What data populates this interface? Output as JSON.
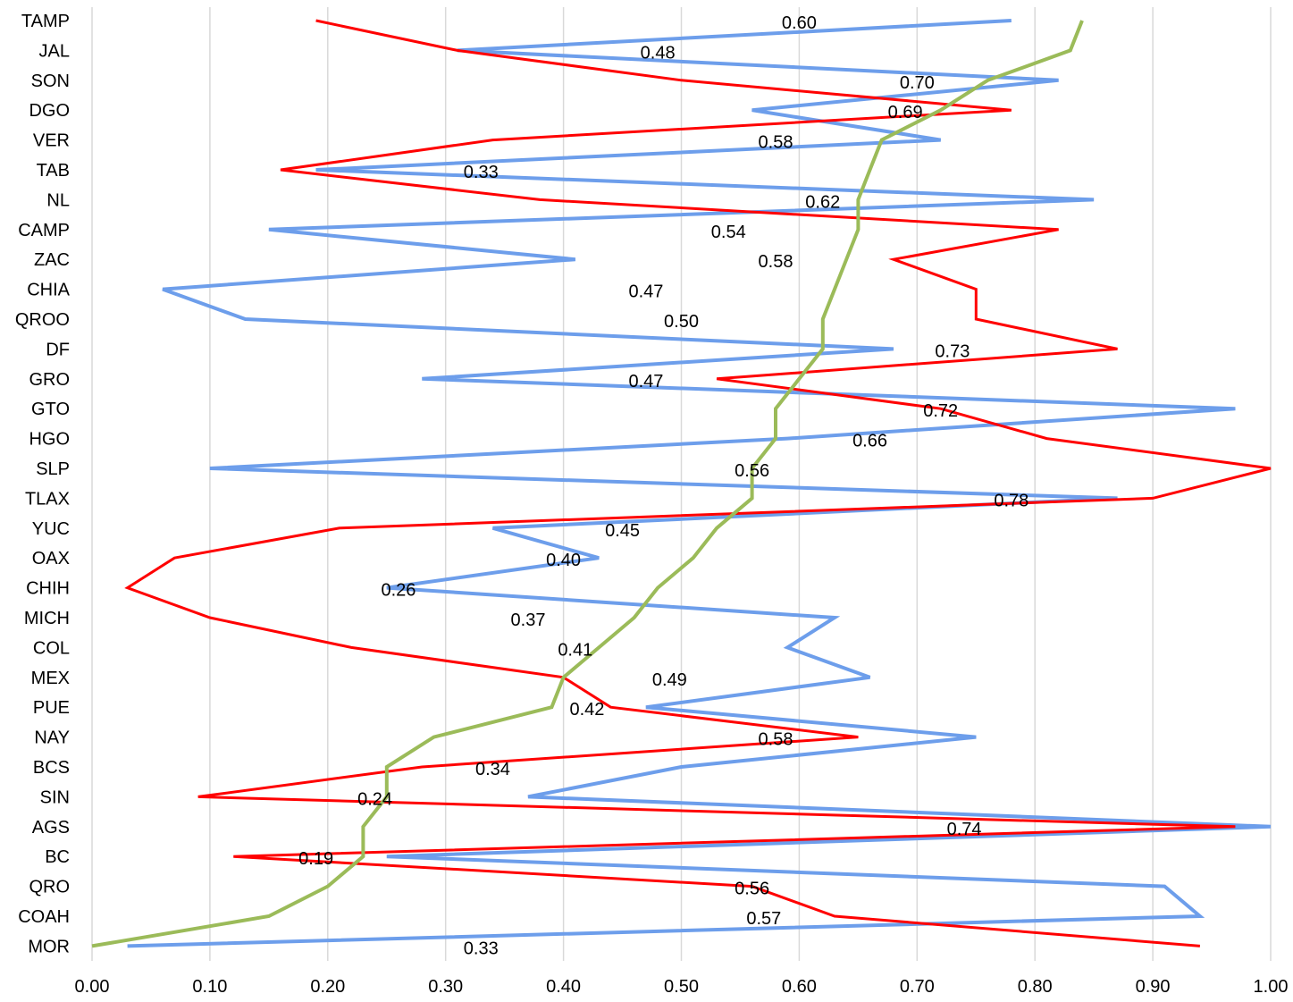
{
  "chart_data": {
    "type": "line",
    "orientation": "horizontal-categories-on-y",
    "categories": [
      "TAMP",
      "JAL",
      "SON",
      "DGO",
      "VER",
      "TAB",
      "NL",
      "CAMP",
      "ZAC",
      "CHIA",
      "QROO",
      "DF",
      "GRO",
      "GTO",
      "HGO",
      "SLP",
      "TLAX",
      "YUC",
      "OAX",
      "CHIH",
      "MICH",
      "COL",
      "MEX",
      "PUE",
      "NAY",
      "BCS",
      "SIN",
      "AGS",
      "BC",
      "QRO",
      "COAH",
      "MOR"
    ],
    "xlim": [
      0.0,
      1.0
    ],
    "x_ticks": [
      "0.00",
      "0.10",
      "0.20",
      "0.30",
      "0.40",
      "0.50",
      "0.60",
      "0.70",
      "0.80",
      "0.90",
      "1.00"
    ],
    "grid": true,
    "legend": "none",
    "series": [
      {
        "color": "#6d9eeb",
        "values": [
          0.78,
          0.31,
          0.82,
          0.56,
          0.72,
          0.19,
          0.85,
          0.15,
          0.41,
          0.06,
          0.13,
          0.68,
          0.28,
          0.97,
          0.59,
          0.1,
          0.87,
          0.34,
          0.43,
          0.25,
          0.63,
          0.59,
          0.66,
          0.47,
          0.75,
          0.5,
          0.37,
          1.0,
          0.25,
          0.91,
          0.94,
          0.03
        ]
      },
      {
        "color": "#ff0000",
        "values": [
          0.19,
          0.31,
          0.5,
          0.78,
          0.34,
          0.16,
          0.38,
          0.82,
          0.68,
          0.75,
          0.75,
          0.87,
          0.53,
          0.72,
          0.81,
          1.0,
          0.9,
          0.21,
          0.07,
          0.03,
          0.1,
          0.22,
          0.4,
          0.44,
          0.65,
          0.28,
          0.09,
          0.97,
          0.12,
          0.56,
          0.63,
          0.94
        ]
      },
      {
        "color": "#9bbb59",
        "values": [
          0.84,
          0.83,
          0.76,
          0.72,
          0.67,
          0.66,
          0.65,
          0.65,
          0.64,
          0.63,
          0.62,
          0.62,
          0.6,
          0.58,
          0.58,
          0.56,
          0.56,
          0.53,
          0.51,
          0.48,
          0.46,
          0.43,
          0.4,
          0.39,
          0.29,
          0.25,
          0.25,
          0.23,
          0.23,
          0.2,
          0.15,
          0.0
        ]
      }
    ],
    "data_labels": [
      "0.60",
      "0.48",
      "0.70",
      "0.69",
      "0.58",
      "0.33",
      "0.62",
      "0.54",
      "0.58",
      "0.47",
      "0.50",
      "0.73",
      "0.47",
      "0.72",
      "0.66",
      "0.56",
      "0.78",
      "0.45",
      "0.40",
      "0.26",
      "0.37",
      "0.41",
      "0.49",
      "0.42",
      "0.58",
      "0.34",
      "0.24",
      "0.74",
      "0.19",
      "0.56",
      "0.57",
      "0.33"
    ]
  }
}
